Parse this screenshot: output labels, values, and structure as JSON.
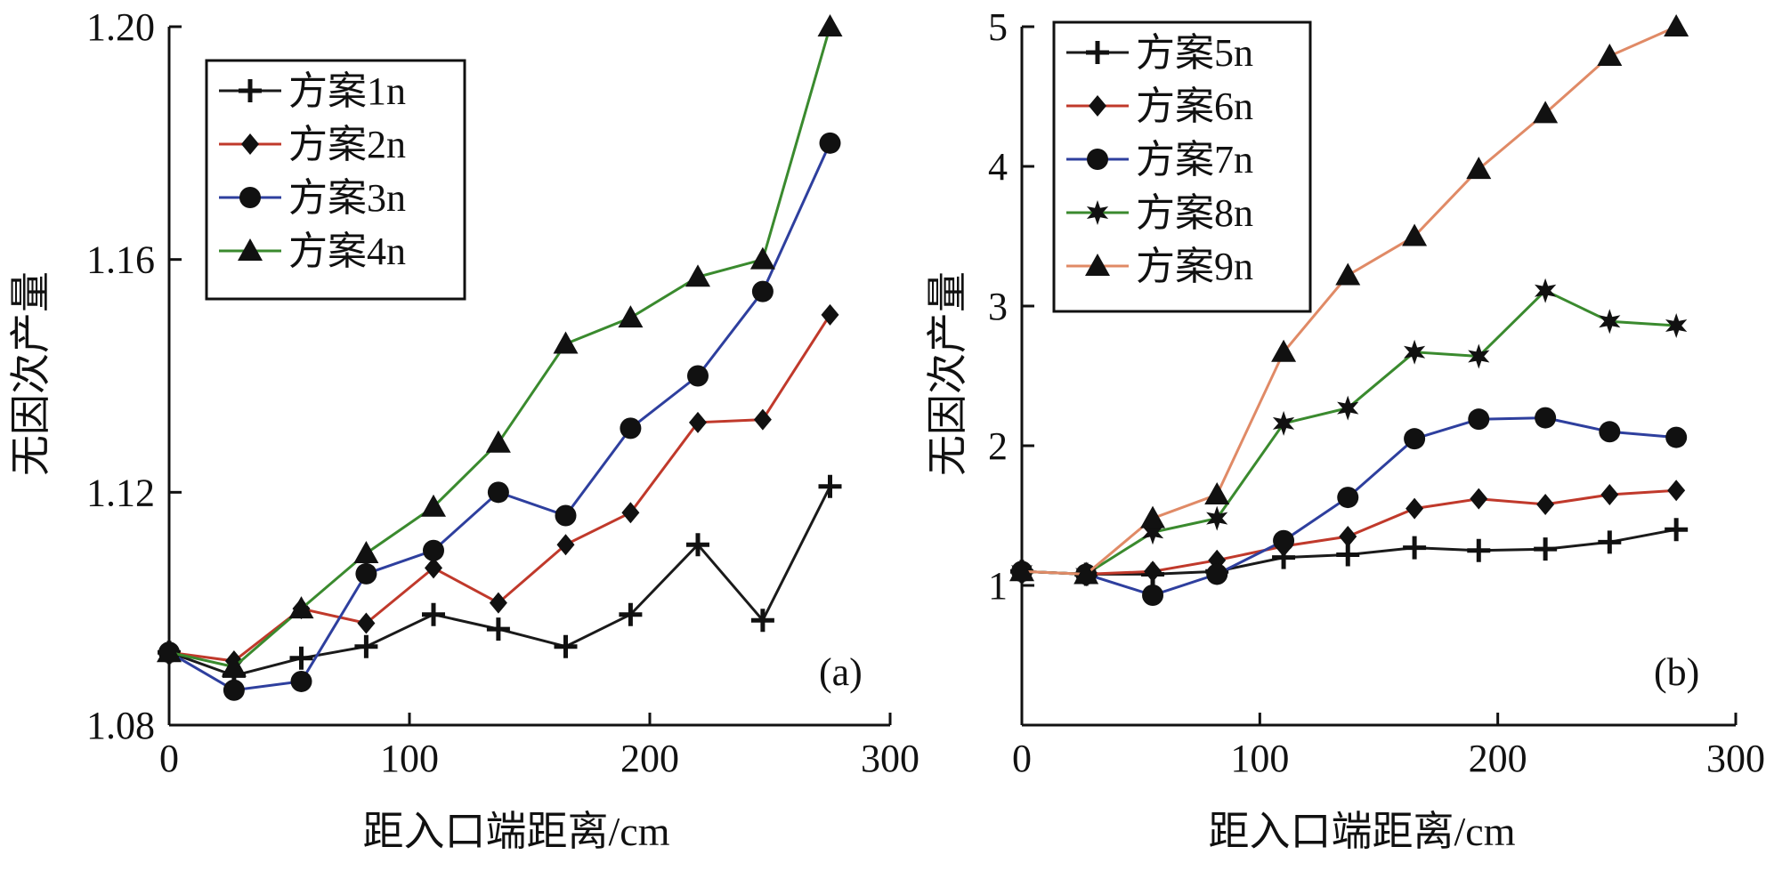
{
  "chart_data": [
    {
      "type": "line",
      "panel_label": "(a)",
      "xlabel": "距入口端距离/cm",
      "ylabel": "无因次产量",
      "xlim": [
        0,
        300
      ],
      "ylim": [
        1.08,
        1.2
      ],
      "xticks": [
        0,
        100,
        200,
        300
      ],
      "yticks": [
        1.08,
        1.12,
        1.16,
        1.2
      ],
      "ytick_labels": [
        "1.08",
        "1.12",
        "1.16",
        "1.20"
      ],
      "legend_position": "top-left",
      "x": [
        0,
        27,
        55,
        82,
        110,
        137,
        165,
        192,
        220,
        247,
        275
      ],
      "series": [
        {
          "name": "方案1n",
          "marker": "plus",
          "color": "#1a1a1a",
          "values": [
            1.0925,
            1.0885,
            1.0915,
            1.0935,
            1.099,
            1.0965,
            1.0935,
            1.099,
            1.111,
            1.098,
            1.121
          ]
        },
        {
          "name": "方案2n",
          "marker": "diamond",
          "color": "#c0392b",
          "values": [
            1.0925,
            1.091,
            1.1,
            1.0975,
            1.107,
            1.101,
            1.111,
            1.1165,
            1.132,
            1.1325,
            1.1505
          ]
        },
        {
          "name": "方案3n",
          "marker": "circle",
          "color": "#2e3f9e",
          "values": [
            1.0925,
            1.086,
            1.0875,
            1.106,
            1.11,
            1.12,
            1.116,
            1.131,
            1.14,
            1.1545,
            1.18
          ]
        },
        {
          "name": "方案4n",
          "marker": "triangle",
          "color": "#3a8a2e",
          "values": [
            1.0925,
            1.09,
            1.1,
            1.1095,
            1.1175,
            1.1285,
            1.1455,
            1.15,
            1.157,
            1.16,
            1.2
          ]
        }
      ]
    },
    {
      "type": "line",
      "panel_label": "(b)",
      "xlabel": "距入口端距离/cm",
      "ylabel": "无因次产量",
      "xlim": [
        0,
        300
      ],
      "ylim": [
        0,
        5
      ],
      "xticks": [
        0,
        100,
        200,
        300
      ],
      "yticks": [
        1,
        2,
        3,
        4,
        5
      ],
      "ytick_labels": [
        "1",
        "2",
        "3",
        "4",
        "5"
      ],
      "legend_position": "top-left",
      "x": [
        0,
        27,
        55,
        82,
        110,
        137,
        165,
        192,
        220,
        247,
        275
      ],
      "series": [
        {
          "name": "方案5n",
          "marker": "plus",
          "color": "#1a1a1a",
          "values": [
            1.1,
            1.08,
            1.08,
            1.1,
            1.2,
            1.22,
            1.27,
            1.25,
            1.26,
            1.31,
            1.4
          ]
        },
        {
          "name": "方案6n",
          "marker": "diamond",
          "color": "#c0392b",
          "values": [
            1.1,
            1.08,
            1.1,
            1.18,
            1.28,
            1.35,
            1.55,
            1.62,
            1.58,
            1.65,
            1.68
          ]
        },
        {
          "name": "方案7n",
          "marker": "circle",
          "color": "#2e3f9e",
          "values": [
            1.1,
            1.08,
            0.93,
            1.08,
            1.32,
            1.63,
            2.05,
            2.19,
            2.2,
            2.1,
            2.06
          ]
        },
        {
          "name": "方案8n",
          "marker": "star",
          "color": "#3a8a2e",
          "values": [
            1.1,
            1.08,
            1.38,
            1.48,
            2.16,
            2.27,
            2.67,
            2.64,
            3.11,
            2.89,
            2.86
          ]
        },
        {
          "name": "方案9n",
          "marker": "triangle",
          "color": "#e08a66",
          "values": [
            1.1,
            1.08,
            1.48,
            1.65,
            2.67,
            3.22,
            3.5,
            3.98,
            4.38,
            4.79,
            5.0
          ]
        }
      ]
    }
  ]
}
